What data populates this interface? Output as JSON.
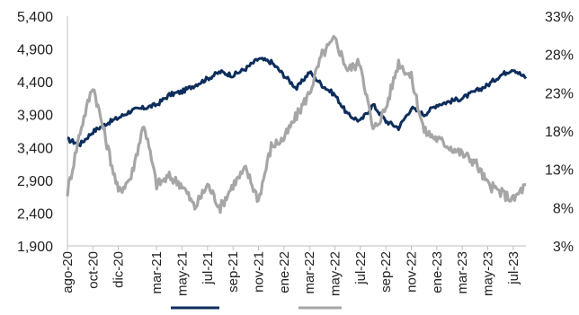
{
  "chart_data": {
    "type": "line",
    "grid": false,
    "legend_placement": "bottom",
    "x": [
      "ago-20",
      "sep-20",
      "oct-20",
      "nov-20",
      "dic-20",
      "ene-21",
      "feb-21",
      "mar-21",
      "abr-21",
      "may-21",
      "jun-21",
      "jul-21",
      "ago-21",
      "sep-21",
      "oct-21",
      "nov-21",
      "dic-21",
      "ene-22",
      "feb-22",
      "mar-22",
      "abr-22",
      "may-22",
      "jun-22",
      "jul-22",
      "ago-22",
      "sep-22",
      "oct-22",
      "nov-22",
      "dic-22",
      "ene-23",
      "feb-23",
      "mar-23",
      "abr-23",
      "may-23",
      "jun-23",
      "jul-23",
      "ago-23"
    ],
    "x_tick_labels": [
      "ago-20",
      "oct-20",
      "dic-20",
      "mar-21",
      "may-21",
      "jul-21",
      "sep-21",
      "nov-21",
      "ene-22",
      "mar-22",
      "may-22",
      "jul-22",
      "sep-22",
      "nov-22",
      "ene-23",
      "mar-23",
      "may-23",
      "jul-23"
    ],
    "y_left": {
      "lim": [
        1900,
        5400
      ],
      "ticks": [
        "1,900",
        "2,400",
        "2,900",
        "3,400",
        "3,900",
        "4,400",
        "4,900",
        "5,400"
      ]
    },
    "y_right": {
      "lim": [
        3,
        33
      ],
      "ticks": [
        "3%",
        "8%",
        "13%",
        "18%",
        "23%",
        "28%",
        "33%"
      ]
    },
    "series": [
      {
        "axis": "left",
        "color": "#0d2d5c",
        "values": [
          3520,
          3450,
          3640,
          3760,
          3850,
          3960,
          4000,
          4050,
          4200,
          4250,
          4350,
          4450,
          4550,
          4500,
          4600,
          4750,
          4700,
          4500,
          4300,
          4550,
          4350,
          4200,
          3900,
          3800,
          4050,
          3800,
          3700,
          4000,
          3900,
          4050,
          4100,
          4150,
          4250,
          4350,
          4500,
          4600,
          4450
        ]
      },
      {
        "axis": "right",
        "color": "#a6a6a6",
        "values": [
          10,
          18,
          24,
          17,
          10,
          12,
          19,
          11,
          12,
          11,
          8,
          11,
          8,
          11,
          13,
          9,
          16,
          17,
          20,
          23,
          28,
          30,
          26,
          27,
          18,
          21,
          27,
          25,
          18,
          17,
          16,
          15,
          14,
          11,
          10,
          9,
          11
        ]
      }
    ]
  }
}
